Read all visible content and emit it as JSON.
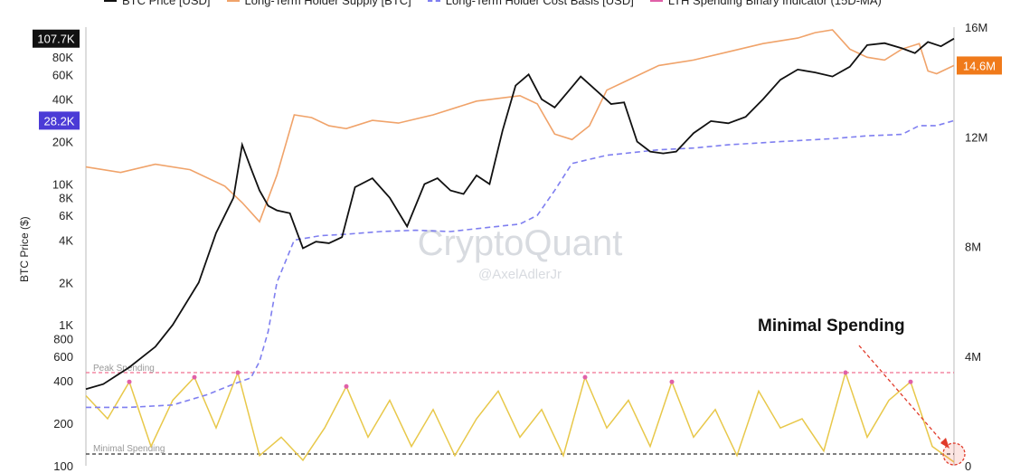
{
  "chart_data": {
    "type": "line",
    "legend": [
      {
        "label": "BTC Price [USD]",
        "color": "#111111",
        "style": "solid"
      },
      {
        "label": "Long-Term Holder Supply [BTC]",
        "color": "#f0a36a",
        "style": "solid"
      },
      {
        "label": "Long-Term Holder Cost Basis [USD]",
        "color": "#7f7ff0",
        "style": "dashed"
      },
      {
        "label": "LTH Spending Binary Indicator (15D-MA)",
        "color": "#e060a8",
        "style": "solid"
      }
    ],
    "ylabel": "BTC Price ($)",
    "y_left": {
      "scale": "log",
      "range": [
        100,
        130000
      ],
      "ticks": [
        "100",
        "200",
        "400",
        "600",
        "800",
        "1K",
        "2K",
        "4K",
        "6K",
        "8K",
        "10K",
        "20K",
        "40K",
        "60K",
        "80K"
      ],
      "tick_values": [
        100,
        200,
        400,
        600,
        800,
        1000,
        2000,
        4000,
        6000,
        8000,
        10000,
        20000,
        40000,
        60000,
        80000
      ]
    },
    "y_right": {
      "scale": "linear",
      "range": [
        0,
        16000000
      ],
      "ticks": [
        "0",
        "4M",
        "8M",
        "12M",
        "16M"
      ],
      "tick_values": [
        0,
        4000000,
        8000000,
        12000000,
        16000000
      ]
    },
    "badges": {
      "btc_price": {
        "label": "107.7K",
        "value": 107700,
        "color": "#111111"
      },
      "cost_basis": {
        "label": "28.2K",
        "value": 28200,
        "color": "#4b3bd6"
      },
      "lth_supply": {
        "label": "14.6M",
        "value": 14600000,
        "color": "#f07a1a"
      }
    },
    "grid": false,
    "watermark": {
      "main": "CryptoQuant",
      "handle": "@AxelAdlerJr"
    },
    "annotations": {
      "peak_label": "Peak Spending",
      "minimal_label": "Minimal Spending",
      "callout": "Minimal Spending"
    },
    "series": [
      {
        "name": "BTC Price [USD]",
        "axis": "left",
        "x": [
          0,
          0.02,
          0.05,
          0.08,
          0.1,
          0.13,
          0.15,
          0.17,
          0.18,
          0.19,
          0.2,
          0.21,
          0.22,
          0.235,
          0.25,
          0.265,
          0.28,
          0.295,
          0.31,
          0.33,
          0.35,
          0.37,
          0.39,
          0.405,
          0.42,
          0.435,
          0.45,
          0.465,
          0.48,
          0.495,
          0.51,
          0.525,
          0.54,
          0.555,
          0.57,
          0.59,
          0.605,
          0.62,
          0.635,
          0.65,
          0.665,
          0.68,
          0.7,
          0.72,
          0.74,
          0.76,
          0.78,
          0.8,
          0.82,
          0.84,
          0.86,
          0.88,
          0.9,
          0.92,
          0.94,
          0.955,
          0.97,
          0.985,
          1.0
        ],
        "values": [
          350,
          380,
          500,
          700,
          1000,
          2000,
          4500,
          8000,
          19000,
          13000,
          9000,
          7000,
          6500,
          6200,
          3500,
          3900,
          3800,
          4200,
          9500,
          11000,
          8000,
          5000,
          10000,
          11000,
          9000,
          8500,
          11500,
          10000,
          24000,
          50000,
          60000,
          40000,
          35000,
          45000,
          58000,
          45000,
          37000,
          38000,
          20000,
          17000,
          16500,
          17000,
          23000,
          28000,
          27000,
          30000,
          40000,
          55000,
          65000,
          62000,
          58000,
          68000,
          97000,
          100000,
          92000,
          85000,
          102000,
          95000,
          107700
        ]
      },
      {
        "name": "Long-Term Holder Supply [BTC]",
        "axis": "right",
        "x": [
          0,
          0.04,
          0.08,
          0.12,
          0.16,
          0.18,
          0.2,
          0.22,
          0.24,
          0.26,
          0.28,
          0.3,
          0.33,
          0.36,
          0.4,
          0.45,
          0.5,
          0.52,
          0.54,
          0.56,
          0.58,
          0.6,
          0.62,
          0.64,
          0.66,
          0.7,
          0.74,
          0.78,
          0.82,
          0.84,
          0.86,
          0.88,
          0.9,
          0.92,
          0.94,
          0.96,
          0.97,
          0.98,
          1.0
        ],
        "values": [
          10900000,
          10700000,
          11000000,
          10800000,
          10200000,
          9600000,
          8900000,
          10600000,
          12800000,
          12700000,
          12400000,
          12300000,
          12600000,
          12500000,
          12800000,
          13300000,
          13500000,
          13200000,
          12100000,
          11900000,
          12400000,
          13700000,
          14000000,
          14300000,
          14600000,
          14800000,
          15100000,
          15400000,
          15600000,
          15800000,
          15900000,
          15200000,
          14900000,
          14800000,
          15200000,
          15400000,
          14400000,
          14300000,
          14600000
        ]
      },
      {
        "name": "Long-Term Holder Cost Basis [USD]",
        "axis": "left",
        "x": [
          0,
          0.05,
          0.1,
          0.14,
          0.17,
          0.19,
          0.2,
          0.21,
          0.22,
          0.24,
          0.27,
          0.3,
          0.34,
          0.38,
          0.42,
          0.46,
          0.5,
          0.52,
          0.54,
          0.56,
          0.6,
          0.66,
          0.7,
          0.74,
          0.8,
          0.86,
          0.9,
          0.94,
          0.96,
          0.98,
          1.0
        ],
        "values": [
          260,
          260,
          270,
          320,
          380,
          420,
          550,
          900,
          2000,
          4000,
          4300,
          4400,
          4600,
          4700,
          4600,
          4900,
          5200,
          6000,
          9000,
          14000,
          16000,
          17500,
          18000,
          19000,
          20000,
          21000,
          22000,
          22500,
          26000,
          26000,
          28200
        ]
      },
      {
        "name": "LTH Spending Binary Indicator (15D-MA)",
        "axis": "right",
        "x": [
          0,
          0.025,
          0.05,
          0.075,
          0.1,
          0.125,
          0.15,
          0.175,
          0.2,
          0.225,
          0.25,
          0.275,
          0.3,
          0.325,
          0.35,
          0.375,
          0.4,
          0.425,
          0.45,
          0.475,
          0.5,
          0.525,
          0.55,
          0.575,
          0.6,
          0.625,
          0.65,
          0.675,
          0.7,
          0.725,
          0.75,
          0.775,
          0.8,
          0.825,
          0.85,
          0.875,
          0.9,
          0.925,
          0.95,
          0.975,
          1.0
        ],
        "values": [
          0.75,
          0.5,
          0.9,
          0.2,
          0.7,
          0.95,
          0.4,
          1.0,
          0.1,
          0.3,
          0.05,
          0.4,
          0.85,
          0.3,
          0.7,
          0.2,
          0.6,
          0.1,
          0.5,
          0.8,
          0.3,
          0.6,
          0.1,
          0.95,
          0.4,
          0.7,
          0.2,
          0.9,
          0.3,
          0.6,
          0.1,
          0.8,
          0.4,
          0.5,
          0.15,
          1.0,
          0.3,
          0.7,
          0.9,
          0.2,
          0.03
        ]
      }
    ]
  }
}
